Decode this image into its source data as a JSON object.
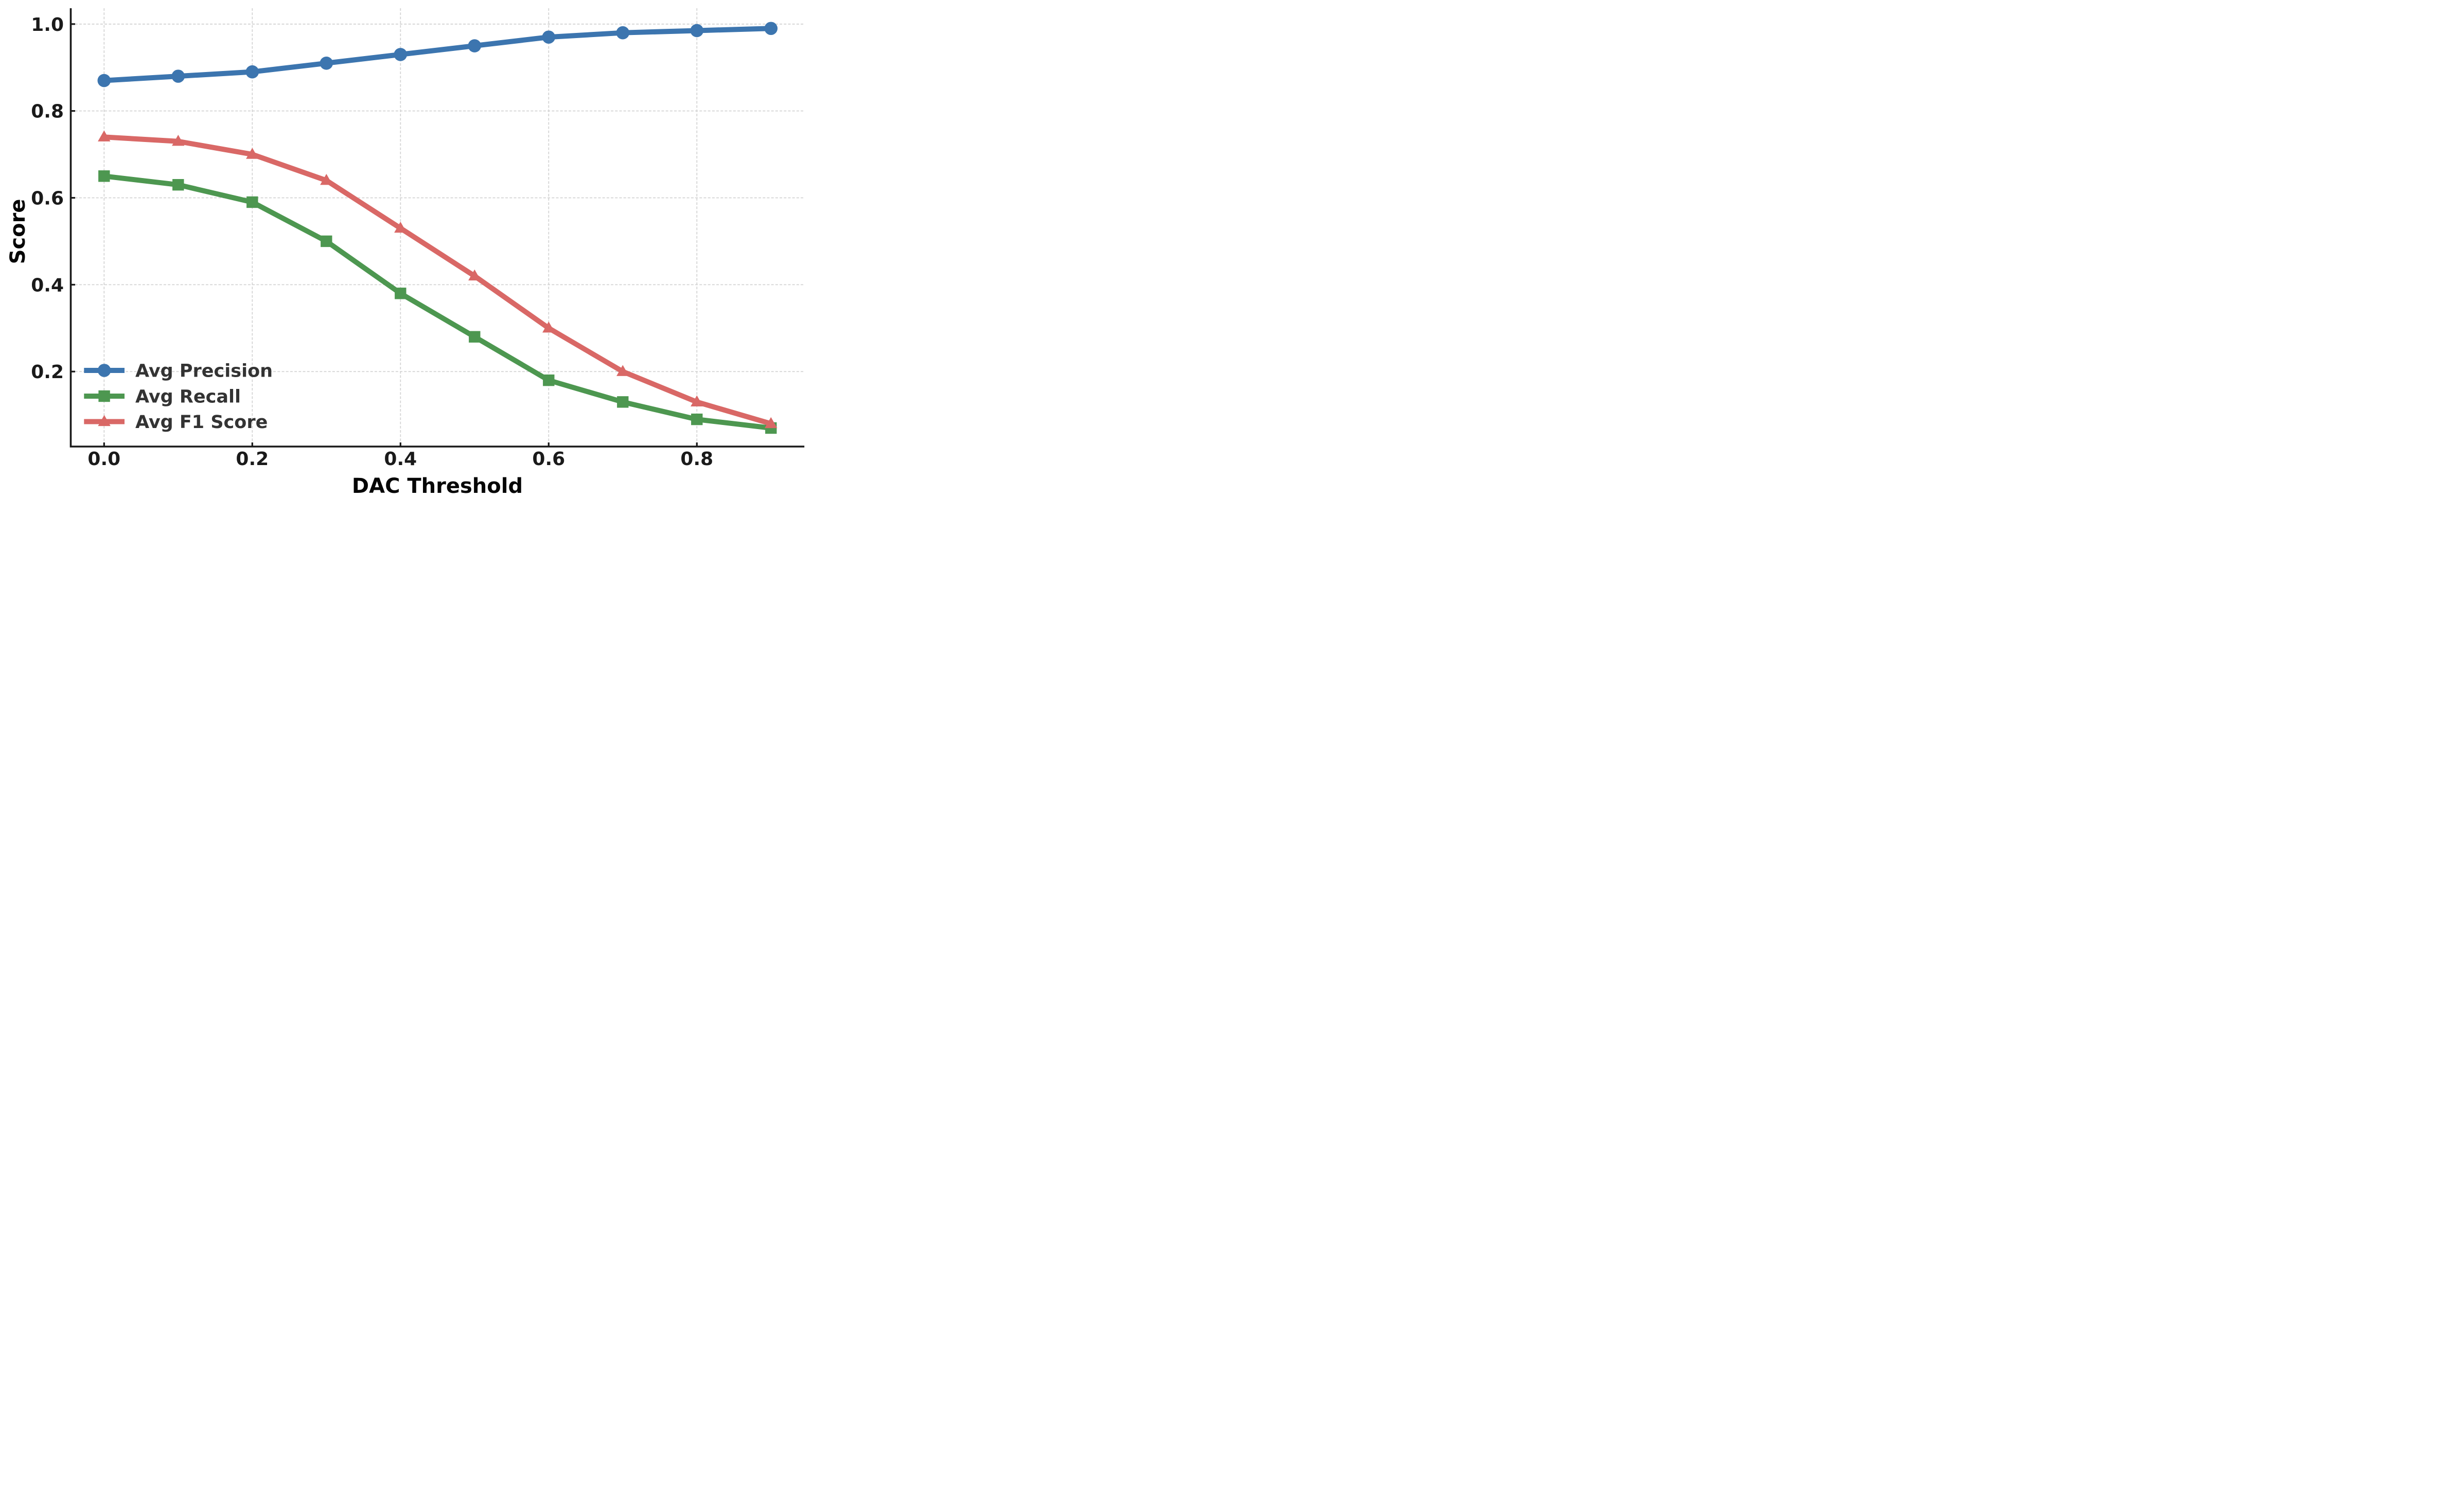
{
  "chart_data": {
    "type": "line",
    "title": "",
    "xlabel": "DAC Threshold",
    "ylabel": "Score",
    "x": [
      0.0,
      0.1,
      0.2,
      0.3,
      0.4,
      0.5,
      0.6,
      0.7,
      0.8,
      0.9
    ],
    "series": [
      {
        "name": "Avg Precision",
        "marker": "circle",
        "color": "#3C75AF",
        "values": [
          0.87,
          0.88,
          0.89,
          0.91,
          0.93,
          0.95,
          0.97,
          0.98,
          0.985,
          0.99
        ]
      },
      {
        "name": "Avg Recall",
        "marker": "square",
        "color": "#4D9750",
        "values": [
          0.65,
          0.63,
          0.59,
          0.5,
          0.38,
          0.28,
          0.18,
          0.13,
          0.09,
          0.07
        ]
      },
      {
        "name": "Avg F1 Score",
        "marker": "triangle",
        "color": "#D96866",
        "values": [
          0.74,
          0.73,
          0.7,
          0.64,
          0.53,
          0.42,
          0.3,
          0.2,
          0.13,
          0.08
        ]
      }
    ],
    "x_ticks": [
      0.0,
      0.2,
      0.4,
      0.6,
      0.8
    ],
    "x_tick_labels": [
      "0.0",
      "0.2",
      "0.4",
      "0.6",
      "0.8"
    ],
    "y_ticks": [
      0.2,
      0.4,
      0.6,
      0.8,
      1.0
    ],
    "y_tick_labels": [
      "0.2",
      "0.4",
      "0.6",
      "0.8",
      "1.0"
    ],
    "xlim": [
      -0.045,
      0.945
    ],
    "ylim": [
      0.024,
      1.036
    ],
    "grid": true,
    "grid_style": "dashed",
    "legend_position": "lower-left",
    "legend_frame": false
  }
}
